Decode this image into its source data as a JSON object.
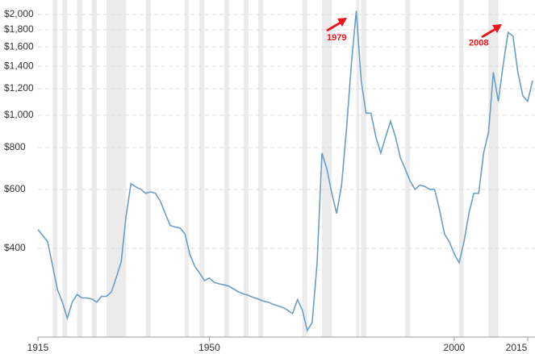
{
  "chart_data": {
    "type": "line",
    "x": [
      1915,
      1917,
      1918,
      1919,
      1920,
      1921,
      1922,
      1923,
      1924,
      1925,
      1926,
      1927,
      1928,
      1929,
      1930,
      1931,
      1932,
      1933,
      1934,
      1935,
      1936,
      1937,
      1938,
      1939,
      1940,
      1941,
      1942,
      1943,
      1944,
      1945,
      1946,
      1947,
      1948,
      1949,
      1950,
      1951,
      1952,
      1953,
      1954,
      1955,
      1956,
      1957,
      1958,
      1959,
      1960,
      1961,
      1962,
      1963,
      1964,
      1965,
      1966,
      1967,
      1968,
      1969,
      1970,
      1971,
      1972,
      1973,
      1974,
      1975,
      1976,
      1977,
      1978,
      1979,
      1980,
      1981,
      1982,
      1983,
      1984,
      1985,
      1986,
      1987,
      1988,
      1989,
      1990,
      1991,
      1992,
      1993,
      1994,
      1995,
      1996,
      1997,
      1998,
      1999,
      2000,
      2001,
      2002,
      2003,
      2004,
      2005,
      2006,
      2007,
      2008,
      2009,
      2010,
      2011,
      2012,
      2013,
      2014,
      2015,
      2016
    ],
    "series": [
      {
        "color": "#6a9ec9",
        "values": [
          455,
          418,
          354,
          300,
          276,
          247,
          276,
          291,
          284,
          284,
          282,
          276,
          287,
          287,
          296,
          327,
          364,
          499,
          624,
          610,
          600,
          584,
          590,
          584,
          553,
          508,
          468,
          463,
          460,
          442,
          385,
          354,
          337,
          320,
          326,
          316,
          313,
          311,
          308,
          302,
          296,
          292,
          289,
          285,
          282,
          278,
          276,
          272,
          269,
          266,
          261,
          255,
          281,
          261,
          227,
          240,
          362,
          770,
          690,
          584,
          508,
          618,
          909,
          1417,
          2050,
          1268,
          1014,
          1014,
          861,
          770,
          861,
          960,
          861,
          747,
          690,
          635,
          600,
          618,
          612,
          600,
          600,
          521,
          442,
          418,
          385,
          362,
          418,
          508,
          584,
          584,
          770,
          888,
          1343,
          1100,
          1417,
          1769,
          1723,
          1343,
          1143,
          1100,
          1268
        ]
      }
    ],
    "log_scale": true,
    "ylim": [
      217,
      2210
    ],
    "yticks": [
      {
        "value": 400,
        "label": "$400"
      },
      {
        "value": 600,
        "label": "$600"
      },
      {
        "value": 800,
        "label": "$800"
      },
      {
        "value": 1000,
        "label": "$1,000"
      },
      {
        "value": 1200,
        "label": "$1,200"
      },
      {
        "value": 1400,
        "label": "$1,400"
      },
      {
        "value": 1600,
        "label": "$1,600"
      },
      {
        "value": 1800,
        "label": "$1,800"
      },
      {
        "value": 2000,
        "label": "$2,000"
      }
    ],
    "xlim": [
      1915,
      2016
    ],
    "xticks": [
      1915,
      1950,
      2000,
      2015
    ],
    "grid": true,
    "recessions": [
      [
        1918,
        1919
      ],
      [
        1920,
        1921
      ],
      [
        1923,
        1924
      ],
      [
        1926,
        1927
      ],
      [
        1929,
        1933
      ],
      [
        1937,
        1938
      ],
      [
        1945,
        1945.8
      ],
      [
        1948,
        1949
      ],
      [
        1953,
        1954
      ],
      [
        1957,
        1958
      ],
      [
        1960,
        1961
      ],
      [
        1969,
        1970
      ],
      [
        1973,
        1975
      ],
      [
        1980,
        1980.6
      ],
      [
        1981,
        1982
      ],
      [
        1990,
        1991
      ],
      [
        2001,
        2001.9
      ],
      [
        2007,
        2009
      ]
    ],
    "recession_color": "#ebebeb",
    "annotations": [
      {
        "text": "1979",
        "x": 1976,
        "y": 1700,
        "color": "#e8161b"
      },
      {
        "text": "2008",
        "x": 2005,
        "y": 1640,
        "color": "#e8161b"
      }
    ]
  }
}
